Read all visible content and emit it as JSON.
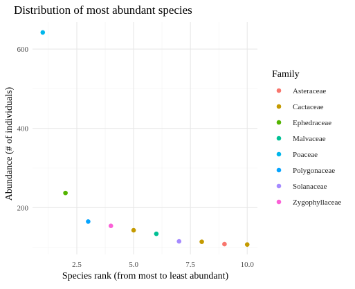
{
  "chart_data": {
    "type": "scatter",
    "title": "Distribution of most abundant species",
    "xlabel": "Species rank (from most to least abundant)",
    "ylabel": "Abundance (# of individuals)",
    "xlim": [
      0.55,
      10.45
    ],
    "ylim": [
      82,
      668
    ],
    "x_ticks": [
      2.5,
      5.0,
      7.5,
      10.0
    ],
    "x_tick_labels": [
      "2.5",
      "5.0",
      "7.5",
      "10.0"
    ],
    "y_ticks": [
      200,
      400,
      600
    ],
    "y_tick_labels": [
      "200",
      "400",
      "600"
    ],
    "grid": true,
    "legend_position": "right",
    "legend_title": "Family",
    "series": [
      {
        "name": "Asteraceae",
        "color": "#F8766D",
        "points": [
          {
            "x": 9,
            "y": 108
          }
        ]
      },
      {
        "name": "Cactaceae",
        "color": "#C49A00",
        "points": [
          {
            "x": 5,
            "y": 143
          },
          {
            "x": 8,
            "y": 114
          },
          {
            "x": 10,
            "y": 107
          }
        ]
      },
      {
        "name": "Ephedraceae",
        "color": "#53B400",
        "points": [
          {
            "x": 2,
            "y": 237
          }
        ]
      },
      {
        "name": "Malvaceae",
        "color": "#00C094",
        "points": [
          {
            "x": 6,
            "y": 134
          }
        ]
      },
      {
        "name": "Poaceae",
        "color": "#00B6EB",
        "points": [
          {
            "x": 1,
            "y": 642
          }
        ]
      },
      {
        "name": "Polygonaceae",
        "color": "#06A4FF",
        "points": [
          {
            "x": 3,
            "y": 165
          }
        ]
      },
      {
        "name": "Solanaceae",
        "color": "#A58AFF",
        "points": [
          {
            "x": 7,
            "y": 115
          }
        ]
      },
      {
        "name": "Zygophyllaceae",
        "color": "#FB61D7",
        "points": [
          {
            "x": 4,
            "y": 154
          }
        ]
      }
    ]
  }
}
